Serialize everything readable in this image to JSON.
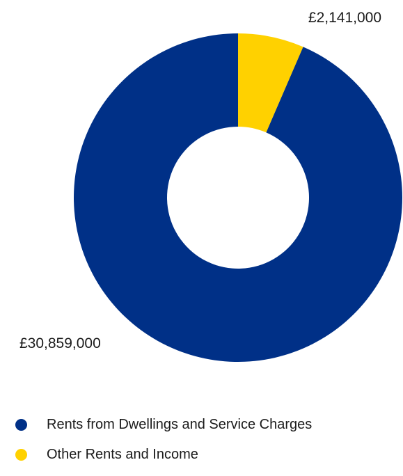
{
  "chart_data": {
    "type": "pie",
    "variant": "donut",
    "title": "",
    "slices": [
      {
        "name": "Other Rents and Income",
        "value": 2141000,
        "label": "£2,141,000",
        "color": "#FFD100"
      },
      {
        "name": "Rents from Dwellings and Service Charges",
        "value": 30859000,
        "label": "£30,859,000",
        "color": "#003087"
      }
    ],
    "legend": {
      "position": "bottom-left",
      "items": [
        {
          "label": "Rents from Dwellings and Service Charges",
          "color": "#003087"
        },
        {
          "label": "Other Rents and Income",
          "color": "#FFD100"
        }
      ]
    }
  }
}
